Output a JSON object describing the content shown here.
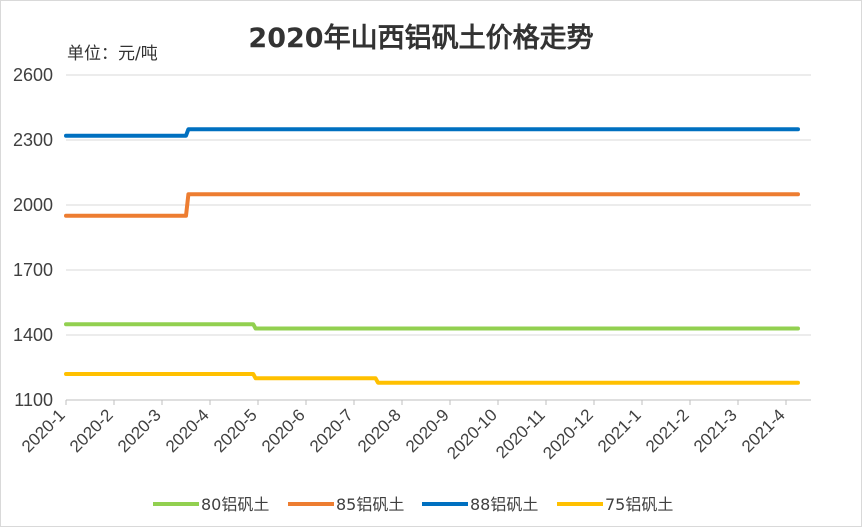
{
  "chart_data": {
    "type": "line",
    "title": "2020年山西铝矾土价格走势",
    "unit_label": "单位：元/吨",
    "xlabel": "",
    "ylabel": "",
    "ylim": [
      1100,
      2600
    ],
    "yticks": [
      1100,
      1400,
      1700,
      2000,
      2300,
      2600
    ],
    "grid": true,
    "legend_position": "bottom",
    "categories": [
      "2020-1",
      "2020-2",
      "2020-3",
      "2020-4",
      "2020-5",
      "2020-6",
      "2020-7",
      "2020-8",
      "2020-9",
      "2020-10",
      "2020-11",
      "2020-12",
      "2021-1",
      "2021-2",
      "2021-3",
      "2021-4"
    ],
    "series": [
      {
        "name": "80铝矾土",
        "color": "#92d050",
        "points": [
          [
            0,
            1450
          ],
          [
            3.9,
            1450
          ],
          [
            3.95,
            1430
          ],
          [
            15.25,
            1430
          ]
        ]
      },
      {
        "name": "85铝矾土",
        "color": "#ed7d31",
        "points": [
          [
            0,
            1950
          ],
          [
            2.5,
            1950
          ],
          [
            2.55,
            2050
          ],
          [
            15.25,
            2050
          ]
        ]
      },
      {
        "name": "88铝矾土",
        "color": "#0070c0",
        "points": [
          [
            0,
            2320
          ],
          [
            2.5,
            2320
          ],
          [
            2.55,
            2350
          ],
          [
            15.25,
            2350
          ]
        ]
      },
      {
        "name": "75铝矾土",
        "color": "#ffc000",
        "points": [
          [
            0,
            1220
          ],
          [
            3.9,
            1220
          ],
          [
            3.95,
            1200
          ],
          [
            6.45,
            1200
          ],
          [
            6.5,
            1180
          ],
          [
            15.25,
            1180
          ]
        ]
      }
    ]
  }
}
